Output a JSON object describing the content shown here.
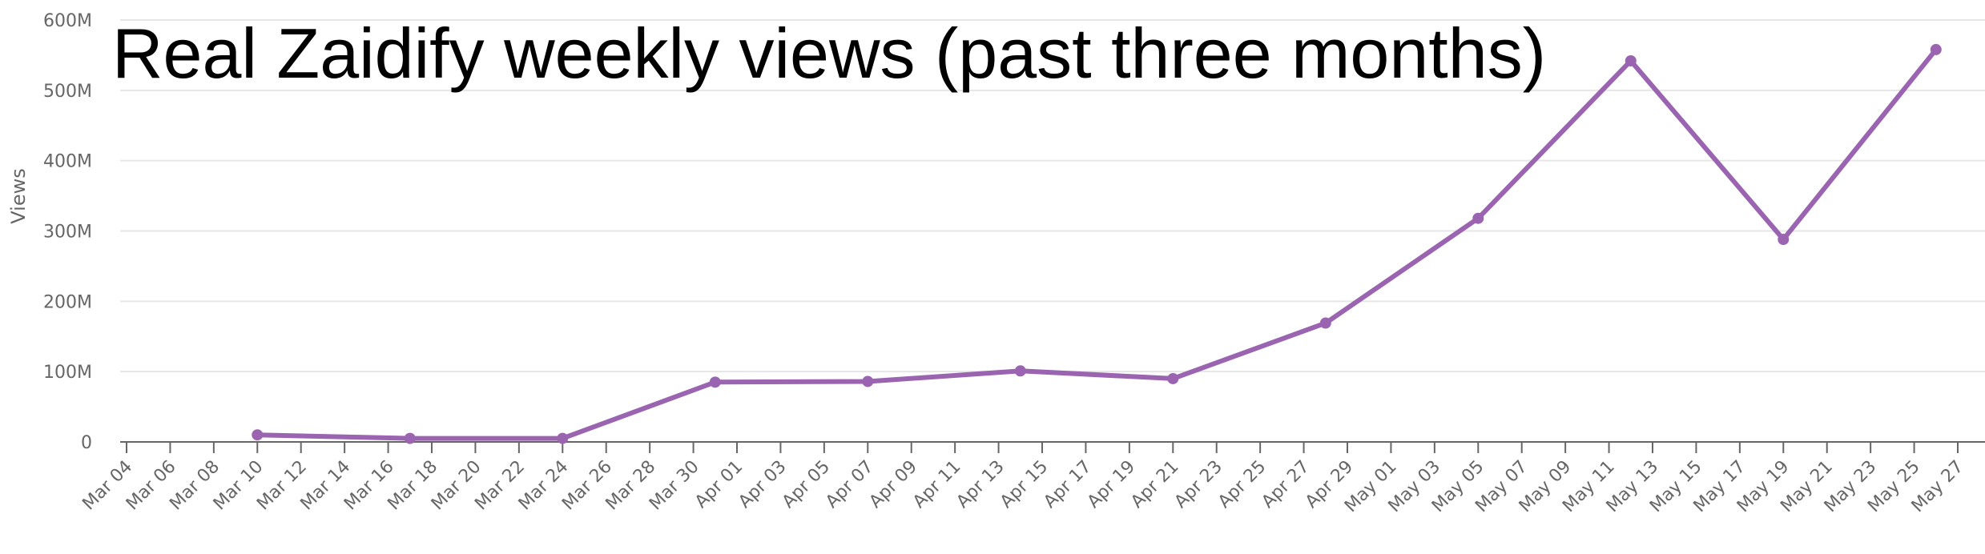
{
  "chart_data": {
    "type": "line",
    "title": "Real Zaidify weekly views (past three months)",
    "xlabel": "",
    "ylabel": "Views",
    "x_range": [
      "2024-03-04",
      "2024-05-27"
    ],
    "ylim": [
      0,
      600000000
    ],
    "y_ticks": [
      {
        "value": 0,
        "label": "0"
      },
      {
        "value": 100000000,
        "label": "100M"
      },
      {
        "value": 200000000,
        "label": "200M"
      },
      {
        "value": 300000000,
        "label": "300M"
      },
      {
        "value": 400000000,
        "label": "400M"
      },
      {
        "value": 500000000,
        "label": "500M"
      },
      {
        "value": 600000000,
        "label": "600M"
      }
    ],
    "x_ticks": [
      {
        "date": "2024-03-04",
        "label": "Mar 04"
      },
      {
        "date": "2024-03-06",
        "label": "Mar 06"
      },
      {
        "date": "2024-03-08",
        "label": "Mar 08"
      },
      {
        "date": "2024-03-10",
        "label": "Mar 10"
      },
      {
        "date": "2024-03-12",
        "label": "Mar 12"
      },
      {
        "date": "2024-03-14",
        "label": "Mar 14"
      },
      {
        "date": "2024-03-16",
        "label": "Mar 16"
      },
      {
        "date": "2024-03-18",
        "label": "Mar 18"
      },
      {
        "date": "2024-03-20",
        "label": "Mar 20"
      },
      {
        "date": "2024-03-22",
        "label": "Mar 22"
      },
      {
        "date": "2024-03-24",
        "label": "Mar 24"
      },
      {
        "date": "2024-03-26",
        "label": "Mar 26"
      },
      {
        "date": "2024-03-28",
        "label": "Mar 28"
      },
      {
        "date": "2024-03-30",
        "label": "Mar 30"
      },
      {
        "date": "2024-04-01",
        "label": "Apr 01"
      },
      {
        "date": "2024-04-03",
        "label": "Apr 03"
      },
      {
        "date": "2024-04-05",
        "label": "Apr 05"
      },
      {
        "date": "2024-04-07",
        "label": "Apr 07"
      },
      {
        "date": "2024-04-09",
        "label": "Apr 09"
      },
      {
        "date": "2024-04-11",
        "label": "Apr 11"
      },
      {
        "date": "2024-04-13",
        "label": "Apr 13"
      },
      {
        "date": "2024-04-15",
        "label": "Apr 15"
      },
      {
        "date": "2024-04-17",
        "label": "Apr 17"
      },
      {
        "date": "2024-04-19",
        "label": "Apr 19"
      },
      {
        "date": "2024-04-21",
        "label": "Apr 21"
      },
      {
        "date": "2024-04-23",
        "label": "Apr 23"
      },
      {
        "date": "2024-04-25",
        "label": "Apr 25"
      },
      {
        "date": "2024-04-27",
        "label": "Apr 27"
      },
      {
        "date": "2024-04-29",
        "label": "Apr 29"
      },
      {
        "date": "2024-05-01",
        "label": "May 01"
      },
      {
        "date": "2024-05-03",
        "label": "May 03"
      },
      {
        "date": "2024-05-05",
        "label": "May 05"
      },
      {
        "date": "2024-05-07",
        "label": "May 07"
      },
      {
        "date": "2024-05-09",
        "label": "May 09"
      },
      {
        "date": "2024-05-11",
        "label": "May 11"
      },
      {
        "date": "2024-05-13",
        "label": "May 13"
      },
      {
        "date": "2024-05-15",
        "label": "May 15"
      },
      {
        "date": "2024-05-17",
        "label": "May 17"
      },
      {
        "date": "2024-05-19",
        "label": "May 19"
      },
      {
        "date": "2024-05-21",
        "label": "May 21"
      },
      {
        "date": "2024-05-23",
        "label": "May 23"
      },
      {
        "date": "2024-05-25",
        "label": "May 25"
      },
      {
        "date": "2024-05-27",
        "label": "May 27"
      }
    ],
    "series": [
      {
        "color": "#9b64b1",
        "points": [
          {
            "x": "2024-03-10",
            "y": 10000000
          },
          {
            "x": "2024-03-17",
            "y": 5000000
          },
          {
            "x": "2024-03-24",
            "y": 5000000
          },
          {
            "x": "2024-03-31",
            "y": 85000000
          },
          {
            "x": "2024-04-07",
            "y": 86000000
          },
          {
            "x": "2024-04-14",
            "y": 101000000
          },
          {
            "x": "2024-04-21",
            "y": 90000000
          },
          {
            "x": "2024-04-28",
            "y": 169000000
          },
          {
            "x": "2024-05-05",
            "y": 318000000
          },
          {
            "x": "2024-05-12",
            "y": 542000000
          },
          {
            "x": "2024-05-19",
            "y": 288000000
          },
          {
            "x": "2024-05-26",
            "y": 558000000
          }
        ]
      }
    ],
    "grid": true,
    "legend": "none",
    "colors": {
      "line": "#9b64b1",
      "grid": "#e6e6e6",
      "axis": "#666666",
      "tick_text": "#666666",
      "title": "#000000"
    }
  }
}
